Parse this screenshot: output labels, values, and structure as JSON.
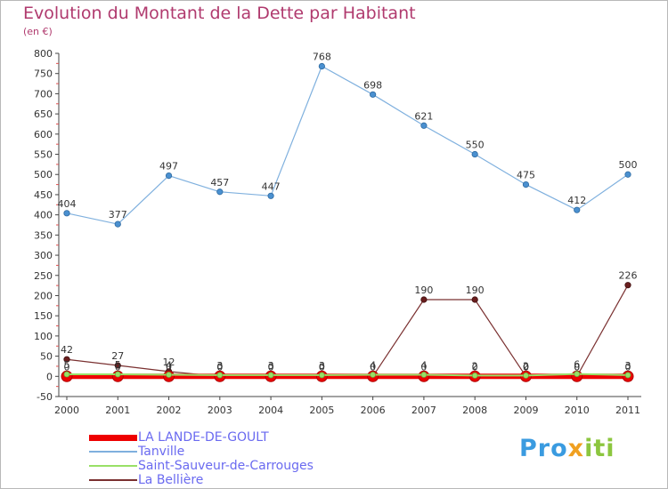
{
  "title": "Evolution du Montant de la Dette par Habitant",
  "subtitle": "(en €)",
  "brand": {
    "parts": [
      "Pro",
      "x",
      "iti"
    ],
    "colors": [
      "#3a9be0",
      "#f0a020",
      "#8cc63f"
    ]
  },
  "chart_data": {
    "type": "line",
    "title": "Evolution du Montant de la Dette par Habitant",
    "ylabel": "(en €)",
    "xlabel": "",
    "categories": [
      "2000",
      "2001",
      "2002",
      "2003",
      "2004",
      "2005",
      "2006",
      "2007",
      "2008",
      "2009",
      "2010",
      "2011"
    ],
    "ylim": [
      -50,
      800
    ],
    "yticks": [
      -50,
      0,
      50,
      100,
      150,
      200,
      250,
      300,
      350,
      400,
      450,
      500,
      550,
      600,
      650,
      700,
      750,
      800
    ],
    "series": [
      {
        "name": "LA LANDE-DE-GOULT",
        "color": "#ee0000",
        "values": [
          0,
          0,
          0,
          0,
          0,
          0,
          0,
          0,
          0,
          0,
          0,
          0
        ],
        "labels": [
          "0",
          "0",
          "0",
          "0",
          "0",
          "0",
          "0",
          "0",
          "0",
          "0",
          "0",
          "0"
        ]
      },
      {
        "name": "Tanville",
        "color": "#7fb0de",
        "values": [
          404,
          377,
          497,
          457,
          447,
          768,
          698,
          621,
          550,
          475,
          412,
          500
        ],
        "labels": [
          "404",
          "377",
          "497",
          "457",
          "447",
          "768",
          "698",
          "621",
          "550",
          "475",
          "412",
          "500"
        ]
      },
      {
        "name": "Saint-Sauveur-de-Carrouges",
        "color": "#99e066",
        "values": [
          5,
          5,
          4,
          3,
          3,
          3,
          4,
          4,
          2,
          2,
          6,
          3
        ],
        "labels": [
          "5",
          "5",
          "4",
          "3",
          "3",
          "3",
          "4",
          "4",
          "2",
          "2",
          "6",
          "3"
        ]
      },
      {
        "name": "La Bellière",
        "color": "#7a3030",
        "values": [
          42,
          27,
          12,
          0,
          0,
          0,
          0,
          190,
          190,
          0,
          0,
          226
        ],
        "labels": [
          "42",
          "27",
          "12",
          "0",
          "0",
          "0",
          "0",
          "190",
          "190",
          "0",
          "0",
          "226"
        ]
      }
    ],
    "grid": false,
    "legend": "bottom-left"
  }
}
